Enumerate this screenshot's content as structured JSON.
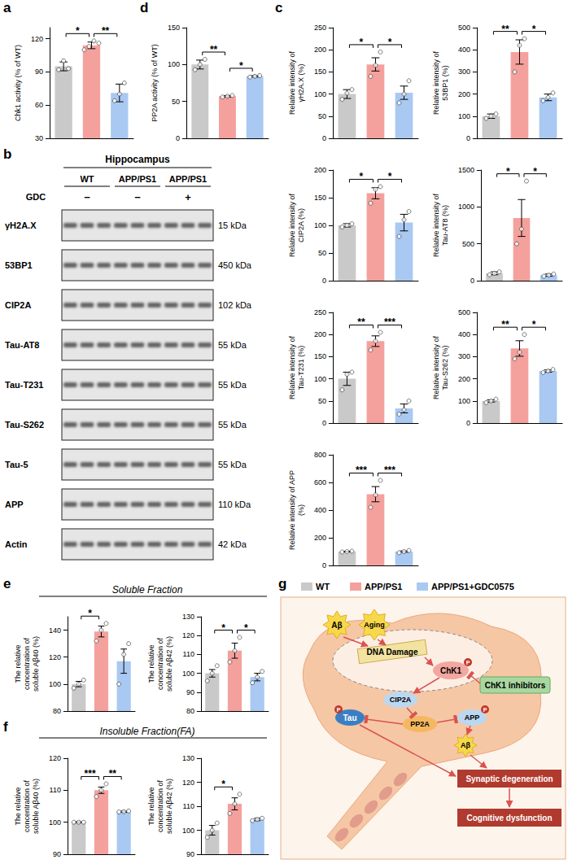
{
  "chart_data": [
    {
      "type": "bar",
      "ylabel": "Chk1 activity (% of WT)",
      "categories": [
        null,
        null,
        null
      ],
      "values": [
        95,
        114,
        71
      ],
      "errors": [
        4,
        3,
        8
      ],
      "points": [
        [
          92,
          100,
          93
        ],
        [
          110,
          113,
          118,
          116
        ],
        [
          64,
          70,
          80
        ]
      ],
      "colors": [
        "#c9c9c9",
        "#f4a19d",
        "#a9c9f2"
      ],
      "ylim": [
        30,
        130
      ],
      "yticks": [
        30,
        60,
        90,
        120
      ],
      "grid": false,
      "tick_labels": "y",
      "significance": [
        {
          "from": 0,
          "to": 1,
          "label": "*"
        },
        {
          "from": 1,
          "to": 2,
          "label": "**"
        }
      ]
    },
    {
      "type": "bar",
      "ylabel": "PP2A activity (% of WT)",
      "categories": [
        null,
        null,
        null
      ],
      "values": [
        100,
        57,
        84
      ],
      "errors": [
        6,
        1,
        1
      ],
      "points": [
        [
          93,
          100,
          107
        ],
        [
          56,
          57,
          58
        ],
        [
          83,
          84,
          85
        ]
      ],
      "colors": [
        "#c9c9c9",
        "#f4a19d",
        "#a9c9f2"
      ],
      "ylim": [
        0,
        150
      ],
      "yticks": [
        0,
        50,
        100,
        150
      ],
      "grid": false,
      "tick_labels": "y",
      "significance": [
        {
          "from": 0,
          "to": 1,
          "label": "**"
        },
        {
          "from": 1,
          "to": 2,
          "label": "*"
        }
      ]
    },
    {
      "type": "bar",
      "ylabel": "Relative intensity of γH2A.X (%)",
      "categories": [
        null,
        null,
        null
      ],
      "values": [
        100,
        167,
        103
      ],
      "errors": [
        10,
        15,
        15
      ],
      "points": [
        [
          88,
          102,
          110
        ],
        [
          140,
          165,
          195
        ],
        [
          80,
          100,
          130
        ]
      ],
      "colors": [
        "#c9c9c9",
        "#f4a19d",
        "#a9c9f2"
      ],
      "ylim": [
        0,
        250
      ],
      "yticks": [
        0,
        50,
        100,
        150,
        200,
        250
      ],
      "grid": false,
      "tick_labels": "y",
      "significance": [
        {
          "from": 0,
          "to": 1,
          "label": "*"
        },
        {
          "from": 1,
          "to": 2,
          "label": "*"
        }
      ]
    },
    {
      "type": "bar",
      "ylabel": "Relative intensity of 53BP1 (%)",
      "categories": [
        null,
        null,
        null
      ],
      "values": [
        100,
        390,
        185
      ],
      "errors": [
        10,
        55,
        15
      ],
      "points": [
        [
          90,
          100,
          110
        ],
        [
          300,
          420,
          450
        ],
        [
          170,
          185,
          205
        ]
      ],
      "colors": [
        "#c9c9c9",
        "#f4a19d",
        "#a9c9f2"
      ],
      "ylim": [
        0,
        500
      ],
      "yticks": [
        0,
        100,
        200,
        300,
        400,
        500
      ],
      "grid": false,
      "tick_labels": "y",
      "significance": [
        {
          "from": 0,
          "to": 1,
          "label": "**"
        },
        {
          "from": 1,
          "to": 2,
          "label": "*"
        }
      ]
    },
    {
      "type": "bar",
      "ylabel": "Relative intensity of CIP2A (%)",
      "categories": [
        null,
        null,
        null
      ],
      "values": [
        100,
        158,
        105
      ],
      "errors": [
        3,
        10,
        15
      ],
      "points": [
        [
          97,
          100,
          103
        ],
        [
          140,
          165,
          170
        ],
        [
          80,
          110,
          125
        ]
      ],
      "colors": [
        "#c9c9c9",
        "#f4a19d",
        "#a9c9f2"
      ],
      "ylim": [
        0,
        200
      ],
      "yticks": [
        0,
        50,
        100,
        150,
        200
      ],
      "grid": false,
      "tick_labels": "y",
      "significance": [
        {
          "from": 0,
          "to": 1,
          "label": "*"
        },
        {
          "from": 1,
          "to": 2,
          "label": "*"
        }
      ]
    },
    {
      "type": "bar",
      "ylabel": "Relative intensity of Tau-AT8 (%)",
      "categories": [
        null,
        null,
        null
      ],
      "values": [
        100,
        850,
        75
      ],
      "errors": [
        20,
        250,
        15
      ],
      "points": [
        [
          80,
          100,
          120
        ],
        [
          500,
          700,
          1350
        ],
        [
          60,
          75,
          90
        ]
      ],
      "colors": [
        "#c9c9c9",
        "#f4a19d",
        "#a9c9f2"
      ],
      "ylim": [
        0,
        1500
      ],
      "yticks": [
        0,
        500,
        1000,
        1500
      ],
      "grid": false,
      "tick_labels": "y",
      "significance": [
        {
          "from": 0,
          "to": 1,
          "label": "*"
        },
        {
          "from": 1,
          "to": 2,
          "label": "*"
        }
      ]
    },
    {
      "type": "bar",
      "ylabel": "Relative intensity of Tau-T231 (%)",
      "categories": [
        null,
        null,
        null
      ],
      "values": [
        100,
        185,
        33
      ],
      "errors": [
        15,
        12,
        10
      ],
      "points": [
        [
          75,
          110,
          115
        ],
        [
          165,
          185,
          205
        ],
        [
          20,
          30,
          50
        ]
      ],
      "colors": [
        "#c9c9c9",
        "#f4a19d",
        "#a9c9f2"
      ],
      "ylim": [
        0,
        250
      ],
      "yticks": [
        0,
        50,
        100,
        150,
        200,
        250
      ],
      "grid": false,
      "tick_labels": "y",
      "significance": [
        {
          "from": 0,
          "to": 1,
          "label": "**"
        },
        {
          "from": 1,
          "to": 2,
          "label": "***"
        }
      ]
    },
    {
      "type": "bar",
      "ylabel": "Relative intensity of Tau-S262 (%)",
      "categories": [
        null,
        null,
        null
      ],
      "values": [
        100,
        337,
        235
      ],
      "errors": [
        5,
        35,
        5
      ],
      "points": [
        [
          92,
          100,
          108
        ],
        [
          290,
          320,
          400
        ],
        [
          228,
          235,
          242
        ]
      ],
      "colors": [
        "#c9c9c9",
        "#f4a19d",
        "#a9c9f2"
      ],
      "ylim": [
        0,
        500
      ],
      "yticks": [
        0,
        100,
        200,
        300,
        400,
        500
      ],
      "grid": false,
      "tick_labels": "y",
      "significance": [
        {
          "from": 0,
          "to": 1,
          "label": "**"
        },
        {
          "from": 1,
          "to": 2,
          "label": "*"
        }
      ]
    },
    {
      "type": "bar",
      "ylabel": "Relative intensity of APP (%)",
      "categories": [
        null,
        null,
        null
      ],
      "values": [
        100,
        515,
        100
      ],
      "errors": [
        3,
        55,
        5
      ],
      "points": [
        [
          97,
          100,
          103
        ],
        [
          420,
          510,
          615
        ],
        [
          92,
          100,
          108
        ]
      ],
      "colors": [
        "#c9c9c9",
        "#f4a19d",
        "#a9c9f2"
      ],
      "ylim": [
        0,
        800
      ],
      "yticks": [
        0,
        200,
        400,
        600,
        800
      ],
      "grid": false,
      "tick_labels": "y",
      "significance": [
        {
          "from": 0,
          "to": 1,
          "label": "***"
        },
        {
          "from": 1,
          "to": 2,
          "label": "***"
        }
      ]
    },
    {
      "type": "bar",
      "ylabel": "The relative concentration of soluble Aβ40 (%)",
      "categories": [
        null,
        null,
        null
      ],
      "values": [
        100,
        139,
        117
      ],
      "errors": [
        2,
        4,
        9
      ],
      "points": [
        [
          97,
          100,
          103
        ],
        [
          132,
          140,
          145
        ],
        [
          100,
          122,
          130
        ]
      ],
      "colors": [
        "#c9c9c9",
        "#f4a19d",
        "#a9c9f2"
      ],
      "ylim": [
        80,
        150
      ],
      "yticks": [
        80,
        100,
        120,
        140
      ],
      "grid": false,
      "tick_labels": "y",
      "significance": [
        {
          "from": 0,
          "to": 1,
          "label": "*"
        }
      ]
    },
    {
      "type": "bar",
      "ylabel": "The relative concentration of soluble Aβ42 (%)",
      "categories": [
        null,
        null,
        null
      ],
      "values": [
        100,
        112,
        98
      ],
      "errors": [
        2,
        4,
        2
      ],
      "points": [
        [
          96,
          100,
          104
        ],
        [
          106,
          112,
          119
        ],
        [
          95,
          98,
          101
        ]
      ],
      "colors": [
        "#c9c9c9",
        "#f4a19d",
        "#a9c9f2"
      ],
      "ylim": [
        80,
        130
      ],
      "yticks": [
        80,
        90,
        100,
        110,
        120,
        130
      ],
      "grid": false,
      "tick_labels": "y",
      "significance": [
        {
          "from": 0,
          "to": 1,
          "label": "*"
        },
        {
          "from": 1,
          "to": 2,
          "label": "*"
        }
      ]
    },
    {
      "type": "bar",
      "ylabel": "The relative concentration of soluble Aβ40 (%)",
      "categories": [
        null,
        null,
        null
      ],
      "values": [
        100,
        110,
        103.3
      ],
      "errors": [
        0.2,
        1,
        0.2
      ],
      "points": [
        [
          100,
          100,
          100
        ],
        [
          108,
          110,
          112
        ],
        [
          103.2,
          103.3,
          103.5
        ]
      ],
      "colors": [
        "#c9c9c9",
        "#f4a19d",
        "#a9c9f2"
      ],
      "ylim": [
        90,
        120
      ],
      "yticks": [
        90,
        100,
        110,
        120
      ],
      "grid": false,
      "tick_labels": "y",
      "significance": [
        {
          "from": 0,
          "to": 1,
          "label": "***"
        },
        {
          "from": 1,
          "to": 2,
          "label": "**"
        }
      ]
    },
    {
      "type": "bar",
      "ylabel": "The relative concentration of soluble Aβ42 (%)",
      "categories": [
        null,
        null,
        null
      ],
      "values": [
        100,
        111,
        104.5
      ],
      "errors": [
        2,
        2.5,
        0.5
      ],
      "points": [
        [
          97,
          100,
          103
        ],
        [
          107,
          111,
          115
        ],
        [
          104,
          104.5,
          105
        ]
      ],
      "colors": [
        "#c9c9c9",
        "#f4a19d",
        "#a9c9f2"
      ],
      "ylim": [
        90,
        130
      ],
      "yticks": [
        90,
        100,
        110,
        120,
        130
      ],
      "grid": false,
      "tick_labels": "y",
      "significance": [
        {
          "from": 0,
          "to": 1,
          "label": "*"
        }
      ]
    }
  ],
  "panels": [
    "a",
    "b",
    "c",
    "d",
    "e",
    "f",
    "g"
  ],
  "fraction_titles": [
    "Soluble Fraction",
    "Insoluble Fraction(FA)"
  ],
  "blot": {
    "tissue": "Hippocampus",
    "treatment_label": "GDC",
    "groups": [
      {
        "name": "WT",
        "treatment": "−",
        "lanes": 3
      },
      {
        "name": "APP/PS1",
        "treatment": "−",
        "lanes": 3
      },
      {
        "name": "APP/PS1",
        "treatment": "+",
        "lanes": 3
      }
    ],
    "bands": [
      {
        "name": "γH2A.X",
        "size": "15 kDa"
      },
      {
        "name": "53BP1",
        "size": "450 kDa"
      },
      {
        "name": "CIP2A",
        "size": "102 kDa"
      },
      {
        "name": "Tau-AT8",
        "size": "55 kDa"
      },
      {
        "name": "Tau-T231",
        "size": "55 kDa"
      },
      {
        "name": "Tau-S262",
        "size": "55 kDa"
      },
      {
        "name": "Tau-5",
        "size": "55 kDa"
      },
      {
        "name": "APP",
        "size": "110 kDa"
      },
      {
        "name": "Actin",
        "size": "42 kDa"
      }
    ]
  },
  "diagram": {
    "legend": [
      {
        "name": "WT",
        "color": "#c9c9c9"
      },
      {
        "name": "APP/PS1",
        "color": "#f4a19d"
      },
      {
        "name": "APP/PS1+GDC0575",
        "color": "#a9c9f2"
      }
    ],
    "nodes": {
      "abeta_in": "Aβ",
      "aging": "Aging",
      "dna": "DNA Damage",
      "chk1": "ChK1",
      "inhibitors": "ChK1 inhibitors",
      "cip2a": "CIP2A",
      "pp2a": "PP2A",
      "tau": "Tau",
      "app": "APP",
      "abeta_out": "Aβ",
      "synaptic": "Synaptic degeneration",
      "cognitive": "Cognitive dysfunction"
    },
    "phospho": "P"
  }
}
